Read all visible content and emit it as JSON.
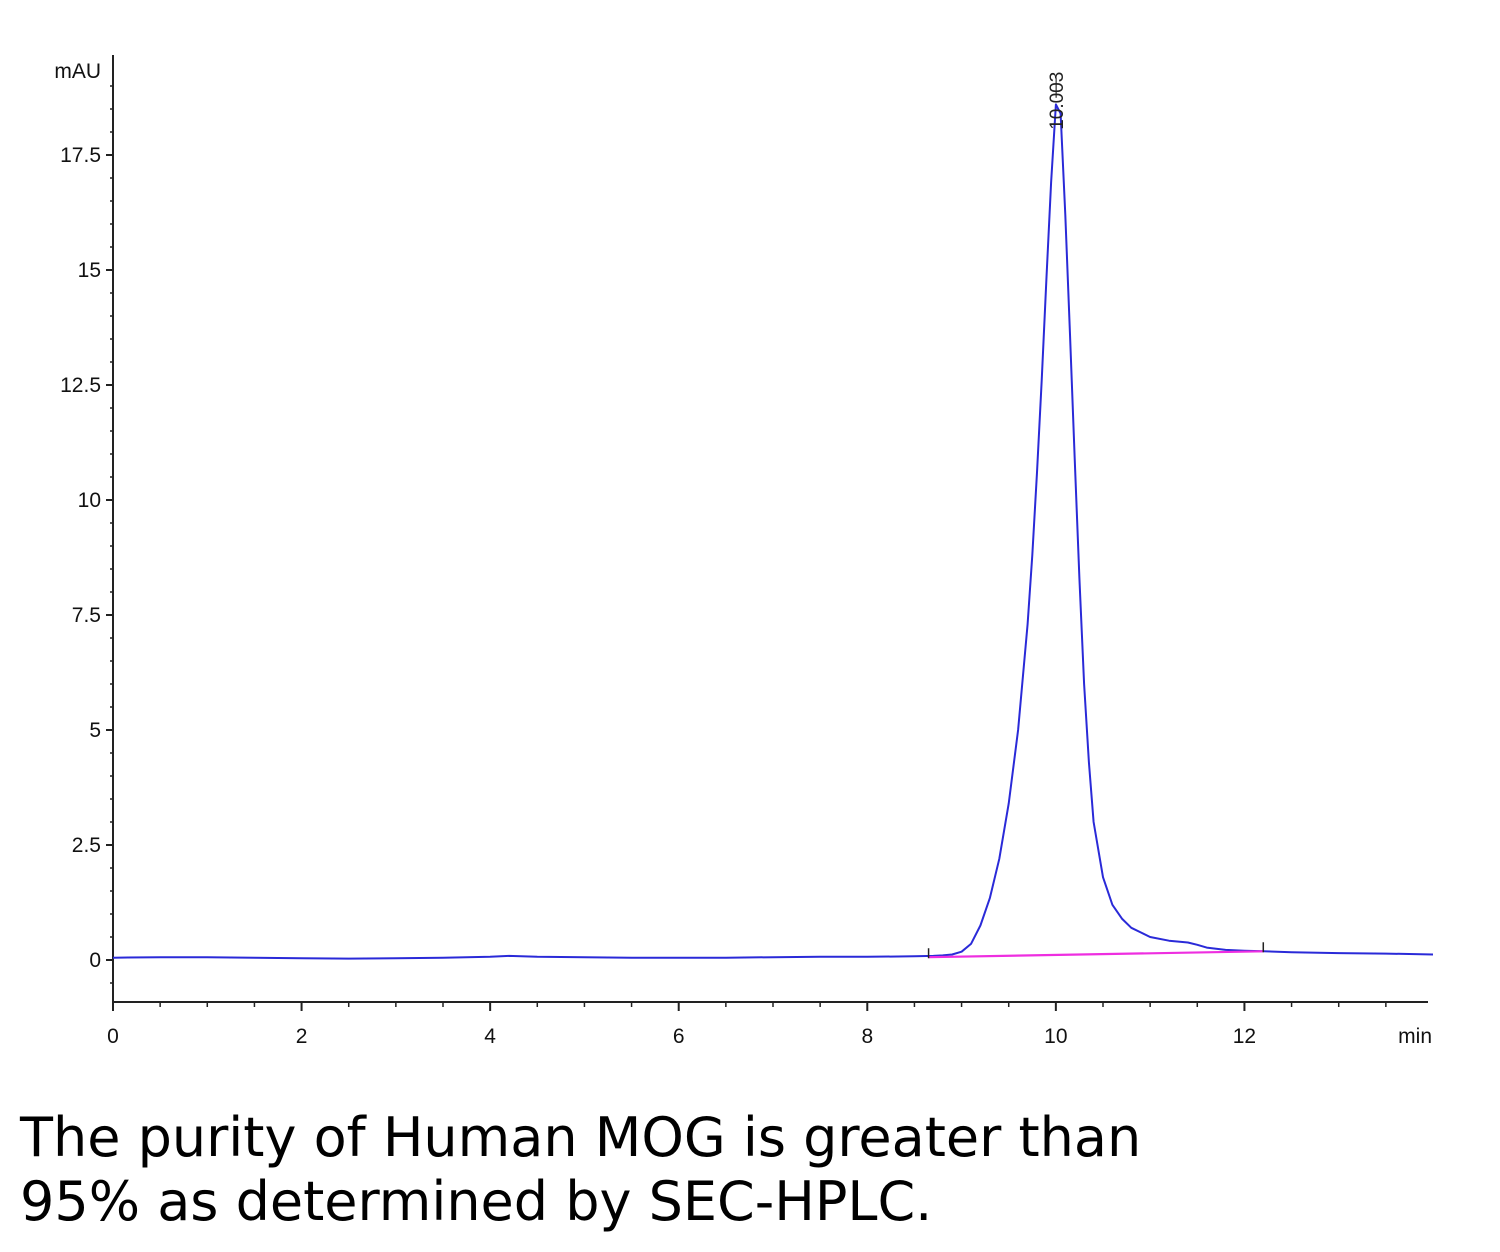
{
  "chart_data": {
    "type": "line",
    "title": "",
    "xlabel": "",
    "ylabel": "",
    "x_unit": "min",
    "y_unit": "mAU",
    "xlim": [
      0,
      14
    ],
    "ylim": [
      -0.9,
      19.5
    ],
    "x_ticks": [
      "0",
      "2",
      "4",
      "6",
      "8",
      "10",
      "12"
    ],
    "y_ticks": [
      "0",
      "2.5",
      "5",
      "7.5",
      "10",
      "12.5",
      "15",
      "17.5"
    ],
    "grid": false,
    "legend": "none",
    "peaks": [
      {
        "label": "10.003",
        "time": 10.003,
        "height": 18.7
      }
    ],
    "series": [
      {
        "color": "#2a2ad8",
        "x": [
          0,
          0.5,
          1.0,
          1.5,
          2.0,
          2.5,
          3.0,
          3.5,
          4.0,
          4.2,
          4.5,
          5.0,
          5.5,
          6.0,
          6.5,
          7.0,
          7.5,
          8.0,
          8.5,
          8.7,
          8.8,
          8.9,
          9.0,
          9.1,
          9.2,
          9.3,
          9.4,
          9.5,
          9.6,
          9.7,
          9.75,
          9.8,
          9.85,
          9.9,
          9.95,
          10.0,
          10.05,
          10.1,
          10.15,
          10.2,
          10.25,
          10.3,
          10.35,
          10.4,
          10.5,
          10.6,
          10.7,
          10.8,
          10.9,
          11.0,
          11.2,
          11.4,
          11.5,
          11.6,
          11.8,
          12.0,
          12.2,
          12.5,
          13.0,
          13.5,
          14.0
        ],
        "y": [
          0.05,
          0.06,
          0.06,
          0.05,
          0.04,
          0.03,
          0.04,
          0.05,
          0.07,
          0.09,
          0.07,
          0.06,
          0.05,
          0.05,
          0.05,
          0.06,
          0.07,
          0.07,
          0.08,
          0.09,
          0.1,
          0.12,
          0.18,
          0.35,
          0.75,
          1.35,
          2.2,
          3.4,
          5.0,
          7.3,
          8.8,
          10.6,
          12.6,
          14.8,
          16.9,
          18.6,
          18.4,
          16.2,
          13.6,
          10.9,
          8.3,
          6.0,
          4.3,
          3.0,
          1.8,
          1.2,
          0.9,
          0.7,
          0.6,
          0.5,
          0.42,
          0.38,
          0.33,
          0.27,
          0.22,
          0.2,
          0.19,
          0.17,
          0.15,
          0.14,
          0.12
        ]
      },
      {
        "color": "#ee2ee0",
        "x": [
          8.65,
          12.2
        ],
        "y": [
          0.06,
          0.19
        ]
      }
    ]
  },
  "caption": {
    "line1": "The purity of Human MOG is greater than",
    "line2": "95% as determined by SEC-HPLC."
  }
}
